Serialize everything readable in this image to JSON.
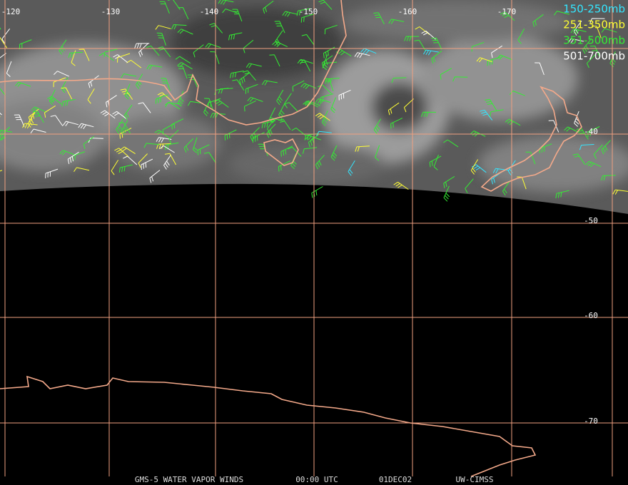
{
  "map": {
    "longitude_labels": [
      "-120",
      "-130",
      "-140",
      "-150",
      "-160",
      "-170"
    ],
    "latitude_labels": [
      "-40",
      "-50",
      "-60",
      "-70"
    ],
    "legend": [
      {
        "label": "150-250mb",
        "color": "#33e6ff"
      },
      {
        "label": "251-350mb",
        "color": "#ffff33"
      },
      {
        "label": "351-500mb",
        "color": "#33ee33"
      },
      {
        "label": "501-700mb",
        "color": "#ffffff"
      }
    ],
    "footer": [
      "GMS-5 WATER VAPOR WINDS",
      "00:00 UTC",
      "01DEC02",
      "UW-CIMSS"
    ]
  }
}
